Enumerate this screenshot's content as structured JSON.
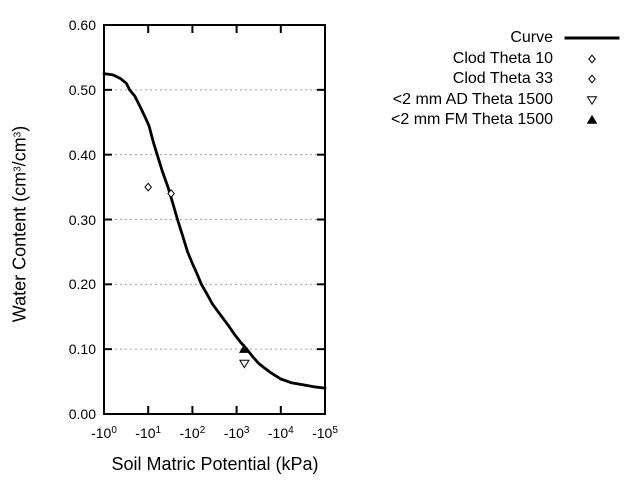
{
  "chart_data": {
    "type": "line",
    "title": "",
    "xlabel": "Soil Matric Potential (kPa)",
    "ylabel": "Water Content (cm3/cm3)",
    "ylabel_segments": [
      {
        "text": "Water Content (cm"
      },
      {
        "sup": "3"
      },
      {
        "text": "/cm"
      },
      {
        "sup": "3"
      },
      {
        "text": ")"
      }
    ],
    "x_axis": {
      "scale": "negative-log10",
      "unit": "kPa",
      "tick_base": "-10",
      "tick_exponents": [
        "0",
        "1",
        "2",
        "3",
        "4",
        "5"
      ],
      "range_decades": [
        0,
        5
      ]
    },
    "y_axis": {
      "min": 0.0,
      "max": 0.6,
      "step": 0.1,
      "tick_labels": [
        "0.00",
        "0.10",
        "0.20",
        "0.30",
        "0.40",
        "0.50",
        "0.60"
      ],
      "grid": "dotted-horizontal"
    },
    "legend_position": "top-right-outside",
    "colors": {
      "axis": "#000000",
      "curve": "#000000",
      "grid": "#a0a0a0",
      "background": "#ffffff",
      "marker_fill_open": "#ffffff"
    },
    "series": [
      {
        "name": "Curve",
        "kind": "line",
        "marker": "line",
        "points": [
          [
            1,
            0.525
          ],
          [
            1.6,
            0.523
          ],
          [
            2.4,
            0.517
          ],
          [
            3.2,
            0.51
          ],
          [
            3.8,
            0.5
          ],
          [
            5,
            0.49
          ],
          [
            6.8,
            0.472
          ],
          [
            8.5,
            0.458
          ],
          [
            10.5,
            0.444
          ],
          [
            13,
            0.42
          ],
          [
            16,
            0.4
          ],
          [
            21,
            0.374
          ],
          [
            28,
            0.35
          ],
          [
            36,
            0.325
          ],
          [
            46,
            0.3
          ],
          [
            60,
            0.275
          ],
          [
            78,
            0.25
          ],
          [
            100,
            0.232
          ],
          [
            126,
            0.217
          ],
          [
            160,
            0.2
          ],
          [
            214,
            0.185
          ],
          [
            282,
            0.17
          ],
          [
            380,
            0.158
          ],
          [
            500,
            0.147
          ],
          [
            676,
            0.135
          ],
          [
            890,
            0.123
          ],
          [
            1260,
            0.11
          ],
          [
            1700,
            0.1
          ],
          [
            2340,
            0.088
          ],
          [
            3160,
            0.078
          ],
          [
            4270,
            0.071
          ],
          [
            5620,
            0.065
          ],
          [
            7590,
            0.059
          ],
          [
            10000,
            0.054
          ],
          [
            17800,
            0.048
          ],
          [
            31600,
            0.045
          ],
          [
            56200,
            0.042
          ],
          [
            100000,
            0.04
          ]
        ]
      },
      {
        "name": "Clod Theta 10",
        "kind": "scatter",
        "marker": "open-diamond",
        "points": [
          [
            10,
            0.35
          ]
        ]
      },
      {
        "name": "Clod Theta 33",
        "kind": "scatter",
        "marker": "open-diamond",
        "points": [
          [
            33,
            0.34
          ]
        ]
      },
      {
        "name": "<2 mm AD Theta 1500",
        "kind": "scatter",
        "marker": "open-triangle-down",
        "points": [
          [
            1500,
            0.078
          ]
        ]
      },
      {
        "name": "<2 mm FM Theta 1500",
        "kind": "scatter",
        "marker": "filled-triangle-up",
        "points": [
          [
            1500,
            0.1
          ]
        ]
      }
    ]
  }
}
